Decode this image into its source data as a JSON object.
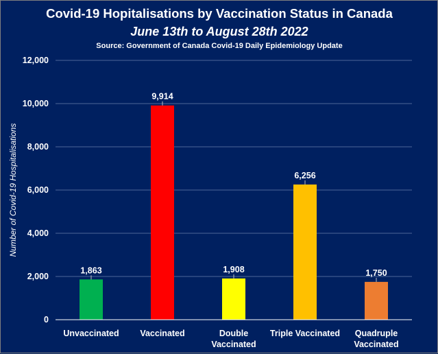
{
  "chart_data": {
    "type": "bar",
    "title": "Covid-19 Hopitalisations by Vaccination Status in Canada",
    "subtitle": "June 13th to August 28th 2022",
    "source": "Source: Government of Canada  Covid-19 Daily Epidemiology Update",
    "ylabel": "Number of Covid-19 Hospitalisations",
    "xlabel": "",
    "ylim": [
      0,
      12000
    ],
    "yticks": [
      0,
      2000,
      4000,
      6000,
      8000,
      10000,
      12000
    ],
    "ytick_labels": [
      "0",
      "2,000",
      "4,000",
      "6,000",
      "8,000",
      "10,000",
      "12,000"
    ],
    "categories": [
      [
        "Unvaccinated"
      ],
      [
        "Vaccinated"
      ],
      [
        "Double",
        "Vaccinated"
      ],
      [
        "Triple Vaccinated"
      ],
      [
        "Quadruple",
        "Vaccinated"
      ]
    ],
    "values": [
      1863,
      9914,
      1908,
      6256,
      1750
    ],
    "value_labels": [
      "1,863",
      "9,914",
      "1,908",
      "6,256",
      "1,750"
    ],
    "colors": [
      "#00b050",
      "#ff0000",
      "#ffff00",
      "#ffc000",
      "#ed7d31"
    ],
    "grid": true,
    "legend": "none"
  }
}
